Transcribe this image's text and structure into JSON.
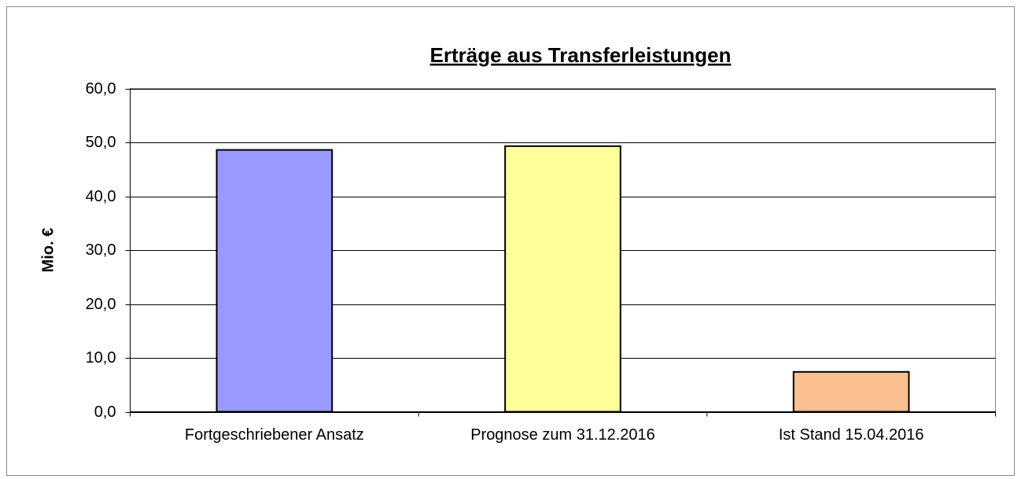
{
  "chart_data": {
    "type": "bar",
    "title": "Erträge aus Transferleistungen",
    "y_label": "Mio. €",
    "categories": [
      "Fortgeschriebener Ansatz",
      "Prognose zum 31.12.2016",
      "Ist Stand 15.04.2016"
    ],
    "values": [
      48.6,
      49.3,
      7.4
    ],
    "colors": [
      "#9999ff",
      "#ffff99",
      "#fac090"
    ],
    "ylim": [
      0,
      60
    ],
    "yticks": [
      {
        "value": 0,
        "label": "0,0"
      },
      {
        "value": 10,
        "label": "10,0"
      },
      {
        "value": 20,
        "label": "20,0"
      },
      {
        "value": 30,
        "label": "30,0"
      },
      {
        "value": 40,
        "label": "40,0"
      },
      {
        "value": 50,
        "label": "50,0"
      },
      {
        "value": 60,
        "label": "60,0"
      }
    ],
    "grid": true
  }
}
